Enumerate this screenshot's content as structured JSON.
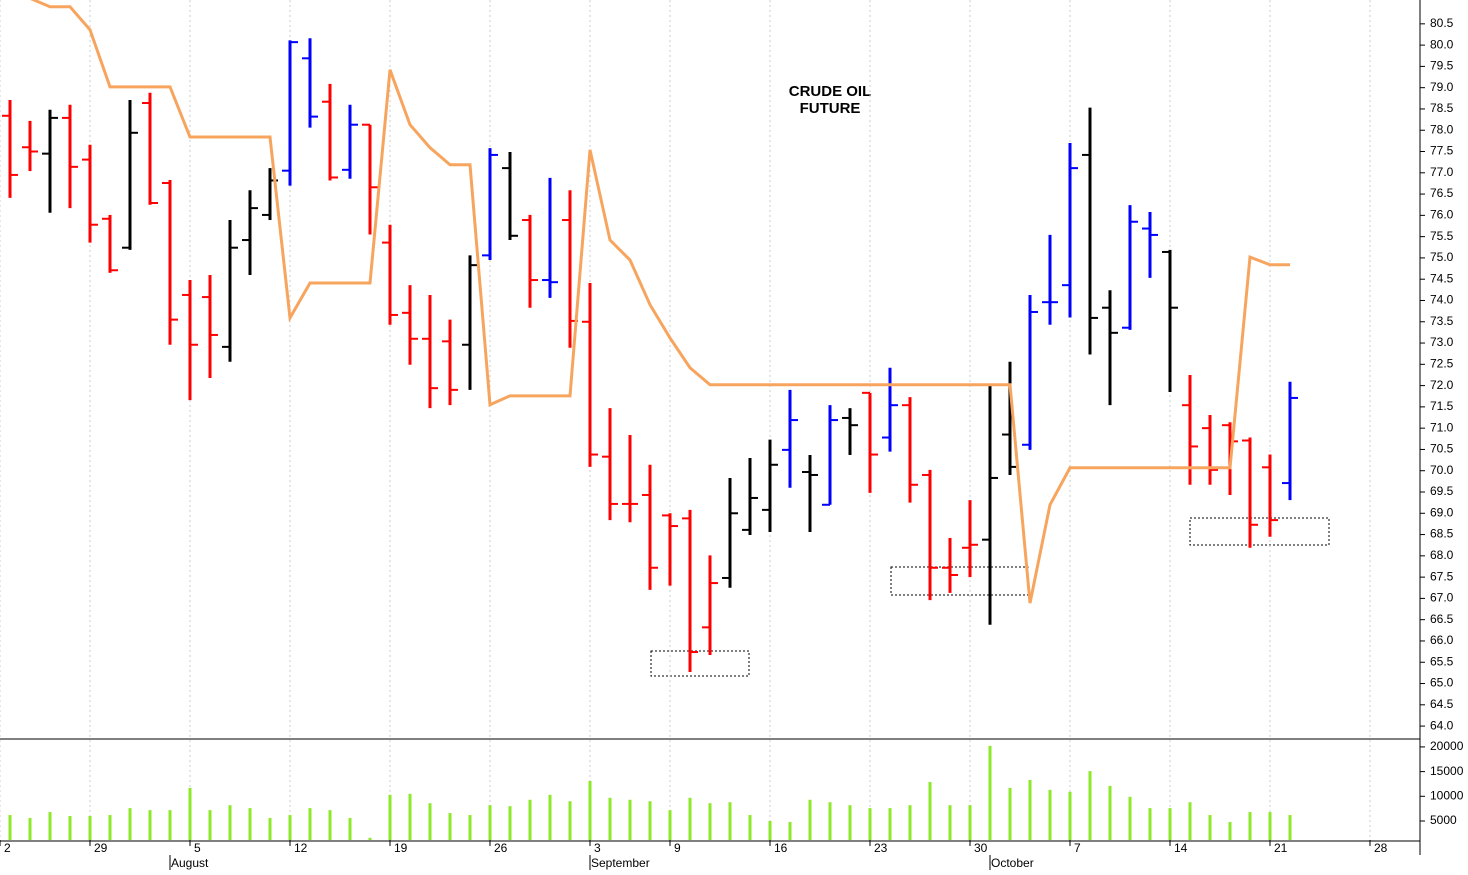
{
  "chart_data": {
    "type": "ohlc",
    "title": [
      "CRUDE OIL",
      "FUTURE"
    ],
    "xlim": [
      -0.5,
      70.5
    ],
    "xticks": [
      {
        "value": -0.5,
        "label": "2"
      },
      {
        "value": 4,
        "label": "29"
      },
      {
        "value": 9,
        "label": "5"
      },
      {
        "value": 14,
        "label": "12"
      },
      {
        "value": 19,
        "label": "19"
      },
      {
        "value": 24,
        "label": "26"
      },
      {
        "value": 29,
        "label": "3"
      },
      {
        "value": 33,
        "label": "9"
      },
      {
        "value": 38,
        "label": "16"
      },
      {
        "value": 43,
        "label": "23"
      },
      {
        "value": 48,
        "label": "30"
      },
      {
        "value": 53,
        "label": "7"
      },
      {
        "value": 58,
        "label": "14"
      },
      {
        "value": 63,
        "label": "21"
      },
      {
        "value": 68,
        "label": "28"
      }
    ],
    "month_ticks": [
      {
        "value": 8,
        "label": "August"
      },
      {
        "value": 29,
        "label": "September"
      },
      {
        "value": 49,
        "label": "October"
      }
    ],
    "ylim": [
      63.72,
      81.06
    ],
    "yticks": [
      {
        "value": 64,
        "label": "64.0"
      },
      {
        "value": 64.5,
        "label": "64.5"
      },
      {
        "value": 65,
        "label": "65.0"
      },
      {
        "value": 65.5,
        "label": "65.5"
      },
      {
        "value": 66,
        "label": "66.0"
      },
      {
        "value": 66.5,
        "label": "66.5"
      },
      {
        "value": 67,
        "label": "67.0"
      },
      {
        "value": 67.5,
        "label": "67.5"
      },
      {
        "value": 68,
        "label": "68.0"
      },
      {
        "value": 68.5,
        "label": "68.5"
      },
      {
        "value": 69,
        "label": "69.0"
      },
      {
        "value": 69.5,
        "label": "69.5"
      },
      {
        "value": 70,
        "label": "70.0"
      },
      {
        "value": 70.5,
        "label": "70.5"
      },
      {
        "value": 71,
        "label": "71.0"
      },
      {
        "value": 71.5,
        "label": "71.5"
      },
      {
        "value": 72,
        "label": "72.0"
      },
      {
        "value": 72.5,
        "label": "72.5"
      },
      {
        "value": 73,
        "label": "73.0"
      },
      {
        "value": 73.5,
        "label": "73.5"
      },
      {
        "value": 74,
        "label": "74.0"
      },
      {
        "value": 74.5,
        "label": "74.5"
      },
      {
        "value": 75,
        "label": "75.0"
      },
      {
        "value": 75.5,
        "label": "75.5"
      },
      {
        "value": 76,
        "label": "76.0"
      },
      {
        "value": 76.5,
        "label": "76.5"
      },
      {
        "value": 77,
        "label": "77.0"
      },
      {
        "value": 77.5,
        "label": "77.5"
      },
      {
        "value": 78,
        "label": "78.0"
      },
      {
        "value": 78.5,
        "label": "78.5"
      },
      {
        "value": 79,
        "label": "79.0"
      },
      {
        "value": 79.5,
        "label": "79.5"
      },
      {
        "value": 80,
        "label": "80.0"
      },
      {
        "value": 80.5,
        "label": "80.5"
      }
    ],
    "grid": true,
    "ohlc": {
      "open": [
        78.34,
        77.6,
        77.45,
        78.29,
        77.31,
        75.92,
        75.24,
        78.64,
        76.76,
        74.13,
        74.08,
        72.91,
        75.42,
        76.01,
        77.05,
        79.69,
        78.67,
        77.07,
        78.13,
        75.36,
        73.71,
        73.1,
        73.04,
        72.96,
        75.06,
        77.11,
        75.89,
        74.48,
        75.89,
        73.5,
        70.33,
        69.22,
        69.43,
        68.95,
        68.88,
        66.32,
        67.48,
        68.61,
        69.08,
        70.49,
        69.97,
        69.2,
        71.24,
        71.83,
        70.78,
        71.54,
        69.9,
        67.72,
        68.19,
        68.38,
        70.85,
        70.61,
        73.96,
        74.36,
        77.42,
        73.83,
        73.36,
        75.69,
        75.14,
        71.54,
        71.0,
        71.07,
        70.71,
        70.08,
        69.71
      ],
      "high": [
        78.71,
        78.22,
        78.48,
        78.6,
        77.66,
        76.01,
        78.71,
        78.88,
        76.83,
        74.48,
        74.6,
        75.89,
        76.59,
        77.11,
        80.11,
        80.16,
        79.09,
        78.6,
        78.13,
        75.78,
        74.36,
        74.13,
        73.55,
        75.06,
        77.58,
        77.49,
        76.01,
        76.88,
        76.59,
        74.41,
        71.47,
        70.84,
        70.14,
        69.0,
        69.08,
        68.01,
        69.83,
        70.3,
        70.73,
        71.9,
        70.37,
        71.54,
        71.47,
        71.83,
        72.42,
        71.73,
        70.02,
        68.42,
        69.31,
        72.01,
        72.56,
        74.13,
        75.54,
        77.7,
        78.53,
        74.24,
        76.24,
        76.08,
        75.19,
        72.25,
        71.31,
        71.14,
        70.78,
        70.38,
        72.09
      ],
      "low": [
        76.41,
        77.04,
        76.06,
        76.17,
        75.36,
        74.65,
        75.19,
        76.25,
        72.96,
        71.66,
        72.18,
        72.56,
        74.6,
        75.89,
        76.7,
        78.06,
        76.82,
        76.86,
        75.55,
        73.43,
        72.49,
        71.47,
        71.54,
        71.9,
        74.95,
        75.42,
        73.83,
        74.06,
        72.89,
        70.09,
        68.84,
        68.79,
        67.2,
        67.3,
        65.27,
        65.67,
        67.25,
        68.49,
        68.56,
        69.6,
        68.56,
        69.2,
        70.37,
        69.48,
        70.45,
        69.25,
        66.96,
        67.13,
        67.5,
        66.38,
        69.9,
        70.49,
        73.43,
        73.6,
        72.73,
        71.54,
        73.31,
        74.53,
        71.85,
        69.67,
        69.67,
        69.43,
        68.19,
        68.45,
        69.31
      ],
      "close": [
        76.95,
        77.5,
        78.29,
        77.14,
        75.78,
        74.71,
        77.94,
        76.29,
        73.55,
        72.96,
        73.19,
        75.24,
        76.17,
        76.82,
        80.07,
        78.32,
        76.89,
        78.13,
        76.66,
        73.66,
        73.1,
        71.94,
        71.9,
        74.83,
        77.42,
        75.52,
        74.48,
        74.43,
        73.52,
        70.38,
        69.22,
        69.22,
        67.72,
        68.7,
        65.74,
        67.36,
        69.0,
        69.36,
        70.14,
        71.19,
        69.9,
        71.19,
        71.07,
        70.38,
        71.54,
        69.67,
        67.72,
        67.55,
        68.26,
        69.83,
        70.09,
        73.73,
        73.96,
        77.11,
        73.59,
        73.24,
        75.85,
        75.54,
        73.83,
        70.57,
        70.02,
        70.69,
        68.73,
        68.84,
        71.71
      ],
      "colors": [
        "#ff0000",
        "#ff0000",
        "#000000",
        "#ff0000",
        "#ff0000",
        "#ff0000",
        "#000000",
        "#ff0000",
        "#ff0000",
        "#ff0000",
        "#ff0000",
        "#000000",
        "#000000",
        "#000000",
        "#0000ff",
        "#0000ff",
        "#ff0000",
        "#0000ff",
        "#ff0000",
        "#ff0000",
        "#ff0000",
        "#ff0000",
        "#ff0000",
        "#000000",
        "#0000ff",
        "#000000",
        "#ff0000",
        "#0000ff",
        "#ff0000",
        "#ff0000",
        "#ff0000",
        "#ff0000",
        "#ff0000",
        "#ff0000",
        "#ff0000",
        "#ff0000",
        "#000000",
        "#000000",
        "#000000",
        "#0000ff",
        "#000000",
        "#0000ff",
        "#000000",
        "#ff0000",
        "#0000ff",
        "#ff0000",
        "#ff0000",
        "#ff0000",
        "#ff0000",
        "#000000",
        "#000000",
        "#0000ff",
        "#0000ff",
        "#0000ff",
        "#000000",
        "#000000",
        "#0000ff",
        "#0000ff",
        "#000000",
        "#ff0000",
        "#ff0000",
        "#ff0000",
        "#ff0000",
        "#ff0000",
        "#0000ff"
      ]
    },
    "line": {
      "color": "#f7a55e",
      "values": [
        81.3,
        81.1,
        80.9,
        80.9,
        80.36,
        79.02,
        79.02,
        79.02,
        79.02,
        77.84,
        77.84,
        77.84,
        77.84,
        77.84,
        73.59,
        74.41,
        74.41,
        74.41,
        74.41,
        79.42,
        78.13,
        77.59,
        77.19,
        77.19,
        71.55,
        71.76,
        71.76,
        71.76,
        71.76,
        77.54,
        75.42,
        74.95,
        73.9,
        73.12,
        72.42,
        72.02,
        72.02,
        72.02,
        72.02,
        72.02,
        72.02,
        72.02,
        72.02,
        72.02,
        72.02,
        72.02,
        72.02,
        72.02,
        72.02,
        72.02,
        72.02,
        66.89,
        69.2,
        70.07,
        70.07,
        70.07,
        70.07,
        70.07,
        70.07,
        70.07,
        70.07,
        70.07,
        75.02,
        74.84,
        74.84
      ]
    },
    "volume": {
      "color": "#8ee82a",
      "ylim": [
        1150,
        21400
      ],
      "yticks": [
        5000,
        10000,
        15000,
        20000
      ],
      "values": [
        6200,
        5600,
        6800,
        6000,
        6000,
        6200,
        7600,
        7200,
        7200,
        11700,
        7200,
        8200,
        7600,
        5600,
        6200,
        7600,
        7200,
        5600,
        1600,
        10300,
        10500,
        8600,
        6600,
        6200,
        8200,
        8000,
        9300,
        10300,
        9000,
        13100,
        9700,
        9300,
        9000,
        7200,
        9700,
        8600,
        8800,
        6200,
        5000,
        4800,
        9300,
        8800,
        8200,
        7600,
        7600,
        8200,
        12900,
        8200,
        8200,
        20200,
        11700,
        13300,
        11300,
        10900,
        15100,
        12100,
        9900,
        7600,
        7600,
        8800,
        6200,
        4800,
        6800,
        6800,
        6200
      ]
    }
  }
}
